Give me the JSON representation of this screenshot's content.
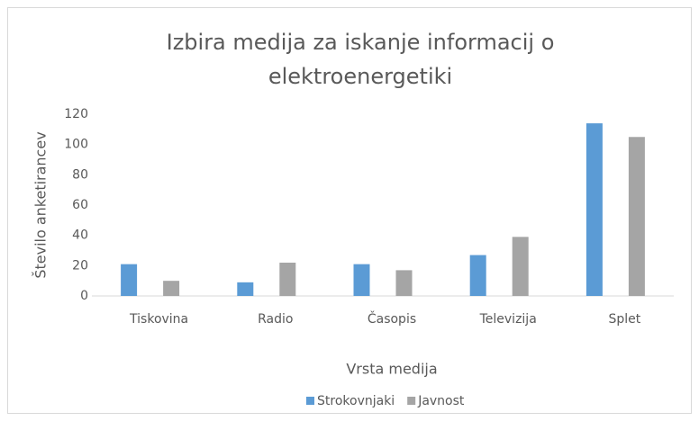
{
  "chart_data": {
    "type": "bar",
    "title": "Izbira medija za iskanje informacij o elektroenergetiki",
    "x_label": "Vrsta medija",
    "y_label": "Število anketirancev",
    "categories": [
      "Tiskovina",
      "Radio",
      "Časopis",
      "Televizija",
      "Splet"
    ],
    "series": [
      {
        "name": "Strokovnjaki",
        "color": "#5b9bd5",
        "values": [
          21,
          9,
          21,
          27,
          114
        ]
      },
      {
        "name": "Javnost",
        "color": "#a5a5a5",
        "values": [
          10,
          22,
          17,
          39,
          105
        ]
      }
    ],
    "ylim": [
      0,
      120
    ],
    "yticks": [
      0,
      20,
      40,
      60,
      80,
      100,
      120
    ],
    "grid": false,
    "legend": "bottom"
  }
}
